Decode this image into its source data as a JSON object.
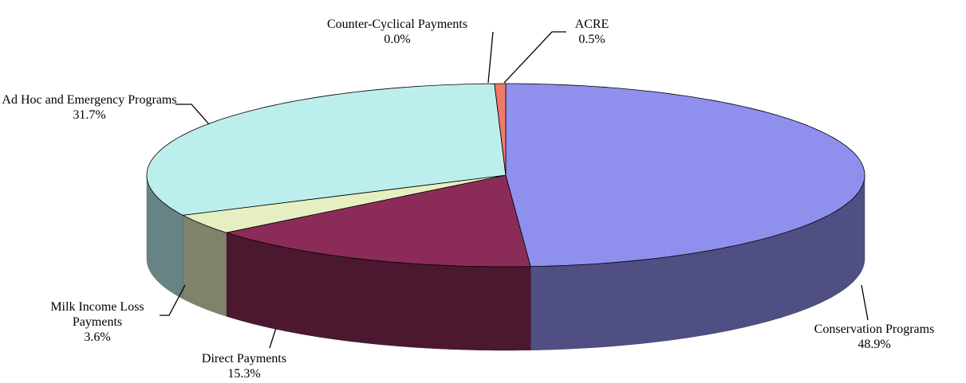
{
  "chart_data": {
    "type": "pie",
    "categories": [
      "Conservation Programs",
      "Direct Payments",
      "Milk Income Loss Payments",
      "Ad Hoc and Emergency Programs",
      "Counter-Cyclical Payments",
      "ACRE"
    ],
    "values": [
      48.9,
      15.3,
      3.6,
      31.7,
      0.0,
      0.5
    ],
    "value_labels": [
      "48.9%",
      "15.3%",
      "3.6%",
      "31.7%",
      "0.0%",
      "0.5%"
    ],
    "colors": [
      "#8f8fee",
      "#8b2c58",
      "#e6efc2",
      "#bdeeee",
      "#5a0a5a",
      "#f07a68"
    ]
  }
}
